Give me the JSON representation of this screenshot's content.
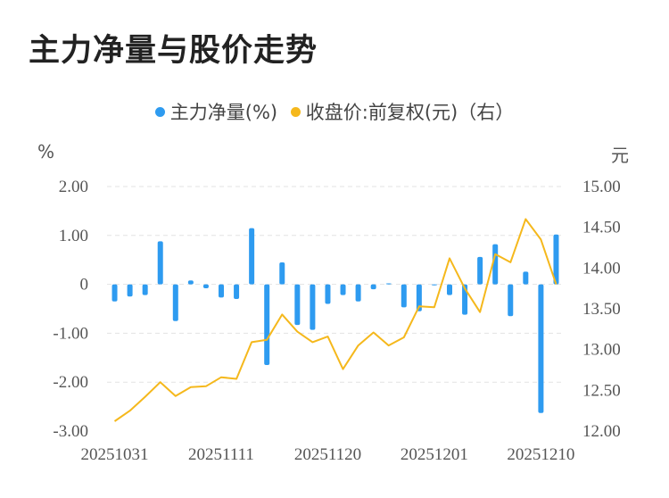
{
  "title": "主力净量与股价走势",
  "legend": {
    "net": "主力净量(%)",
    "price": "收盘价:前复权(元)（右）"
  },
  "colors": {
    "net": "#2e9bf0",
    "price": "#f5b81c",
    "grid": "#e3e3e3",
    "text": "#555555"
  },
  "chart_data": {
    "type": "bar+line",
    "title": "主力净量与股价走势",
    "left_unit": "%",
    "right_unit": "元",
    "left_ticks": [
      "2.00",
      "1.00",
      "0",
      "-1.00",
      "-2.00",
      "-3.00"
    ],
    "right_ticks": [
      "15.00",
      "14.50",
      "14.00",
      "13.50",
      "13.00",
      "12.50",
      "12.00"
    ],
    "ylim_left": [
      -3,
      2
    ],
    "ylim_right": [
      12,
      15
    ],
    "x_tick_labels": [
      "20251031",
      "20251111",
      "20251120",
      "20251201",
      "20251210"
    ],
    "x_tick_index": [
      0,
      7,
      14,
      21,
      28
    ],
    "series": [
      {
        "name": "主力净量(%)",
        "axis": "left",
        "kind": "bar",
        "values": [
          -0.35,
          -0.25,
          -0.22,
          0.88,
          -0.75,
          0.08,
          -0.08,
          -0.27,
          -0.3,
          1.15,
          -1.65,
          0.45,
          -0.83,
          -0.93,
          -0.4,
          -0.22,
          -0.35,
          -0.1,
          0.02,
          -0.47,
          -0.55,
          -0.02,
          -0.22,
          -0.62,
          0.56,
          0.82,
          -0.65,
          0.26,
          -2.63,
          1.02
        ]
      },
      {
        "name": "收盘价:前复权(元)（右）",
        "axis": "right",
        "kind": "line",
        "values": [
          12.12,
          12.25,
          12.42,
          12.6,
          12.43,
          12.54,
          12.55,
          12.66,
          12.64,
          13.09,
          13.12,
          13.43,
          13.22,
          13.09,
          13.16,
          12.76,
          13.05,
          13.21,
          13.05,
          13.15,
          13.53,
          13.52,
          14.12,
          13.75,
          13.46,
          14.17,
          14.07,
          14.6,
          14.35,
          13.8
        ]
      }
    ]
  }
}
